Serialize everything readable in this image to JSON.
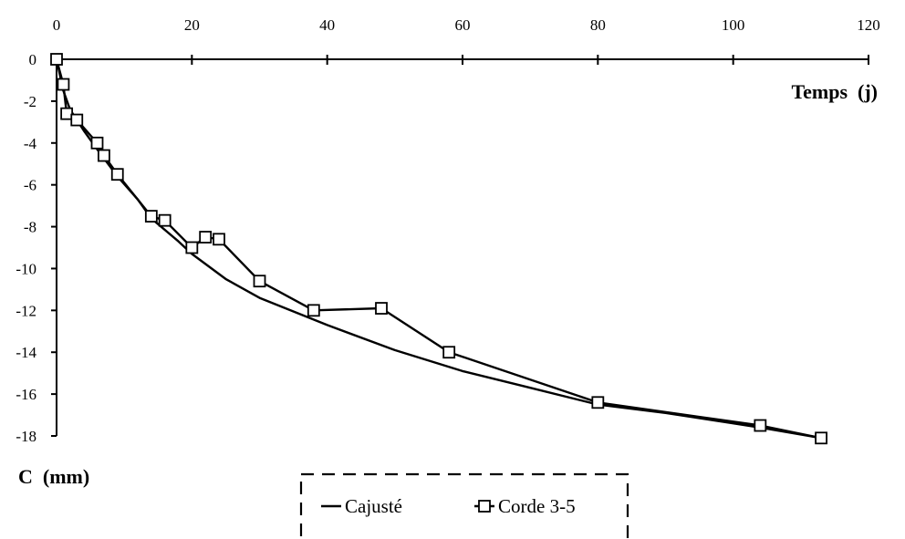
{
  "chart_data": {
    "type": "line",
    "xlabel": "Temps  (j)",
    "ylabel": "C  (mm)",
    "xlim": [
      0,
      120
    ],
    "ylim": [
      -18,
      0
    ],
    "x_ticks": [
      "0",
      "20",
      "40",
      "60",
      "80",
      "100",
      "120"
    ],
    "y_ticks": [
      "0",
      "-2",
      "-4",
      "-6",
      "-8",
      "-10",
      "-12",
      "-14",
      "-16",
      "-18"
    ],
    "grid": false,
    "legend_position": "bottom-center",
    "series": [
      {
        "name": "Cajusté",
        "marker": "none",
        "color": "#000000",
        "x": [
          0,
          1,
          2,
          4,
          6,
          9,
          12,
          14,
          18,
          20,
          25,
          30,
          40,
          50,
          60,
          70,
          80,
          90,
          100,
          104,
          113
        ],
        "y": [
          0,
          -1.5,
          -2.4,
          -3.4,
          -4.3,
          -5.6,
          -6.7,
          -7.6,
          -8.7,
          -9.3,
          -10.5,
          -11.4,
          -12.7,
          -13.9,
          -14.9,
          -15.7,
          -16.5,
          -16.9,
          -17.4,
          -17.6,
          -18.1
        ]
      },
      {
        "name": "Corde 3-5",
        "marker": "square",
        "color": "#000000",
        "x": [
          0,
          1,
          1.5,
          3,
          6,
          7,
          9,
          14,
          16,
          20,
          22,
          24,
          30,
          38,
          48,
          58,
          80,
          104,
          113
        ],
        "y": [
          0,
          -1.2,
          -2.6,
          -2.9,
          -4.0,
          -4.6,
          -5.5,
          -7.5,
          -7.7,
          -9.0,
          -8.5,
          -8.6,
          -10.6,
          -12.0,
          -11.9,
          -14.0,
          -16.4,
          -17.5,
          -18.1
        ]
      }
    ]
  }
}
